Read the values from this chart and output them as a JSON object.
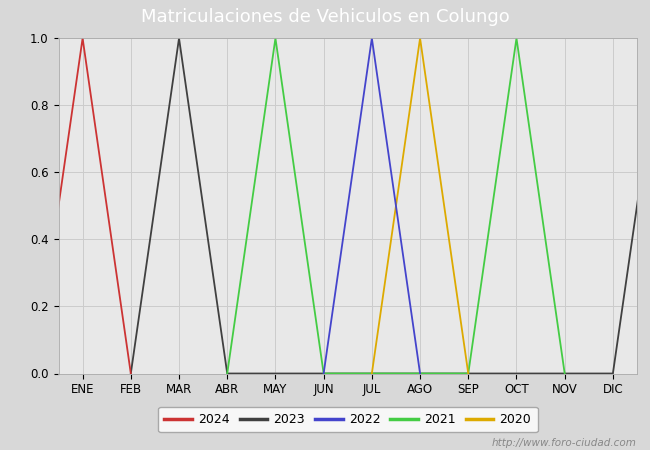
{
  "title": "Matriculaciones de Vehiculos en Colungo",
  "title_bg_color": "#4a7abf",
  "title_text_color": "white",
  "months": [
    "ENE",
    "FEB",
    "MAR",
    "ABR",
    "MAY",
    "JUN",
    "JUL",
    "AGO",
    "SEP",
    "OCT",
    "NOV",
    "DIC"
  ],
  "series": {
    "2024": {
      "color": "#cc3333",
      "data": [
        [
          -1,
          0.0
        ],
        [
          0,
          1.0
        ],
        [
          1,
          0.0
        ]
      ]
    },
    "2023": {
      "color": "#404040",
      "data": [
        [
          1,
          0.0
        ],
        [
          2,
          1.0
        ],
        [
          3,
          0.0
        ],
        [
          11,
          0.0
        ],
        [
          12,
          1.0
        ]
      ]
    },
    "2021": {
      "color": "#44cc44",
      "data": [
        [
          3,
          0.0
        ],
        [
          4,
          1.0
        ],
        [
          5,
          0.0
        ],
        [
          8,
          0.0
        ],
        [
          9,
          1.0
        ],
        [
          10,
          0.0
        ]
      ]
    },
    "2020": {
      "color": "#ddaa00",
      "data": [
        [
          6,
          0.0
        ],
        [
          7,
          1.0
        ],
        [
          8,
          0.0
        ]
      ]
    },
    "2022": {
      "color": "#4444cc",
      "data": [
        [
          5,
          0.0
        ],
        [
          6,
          1.0
        ],
        [
          7,
          0.0
        ]
      ]
    }
  },
  "series_plot_order": [
    "2023",
    "2021",
    "2020",
    "2022",
    "2024"
  ],
  "ylim": [
    0.0,
    1.0
  ],
  "yticks": [
    0.0,
    0.2,
    0.4,
    0.6,
    0.8,
    1.0
  ],
  "grid_color": "#cccccc",
  "outer_bg_color": "#d8d8d8",
  "plot_bg_color": "#e8e8e8",
  "watermark": "http://www.foro-ciudad.com",
  "legend_order": [
    "2024",
    "2023",
    "2022",
    "2021",
    "2020"
  ],
  "linewidth": 1.3,
  "title_fontsize": 13,
  "tick_fontsize": 8.5,
  "legend_fontsize": 9,
  "watermark_fontsize": 7.5
}
